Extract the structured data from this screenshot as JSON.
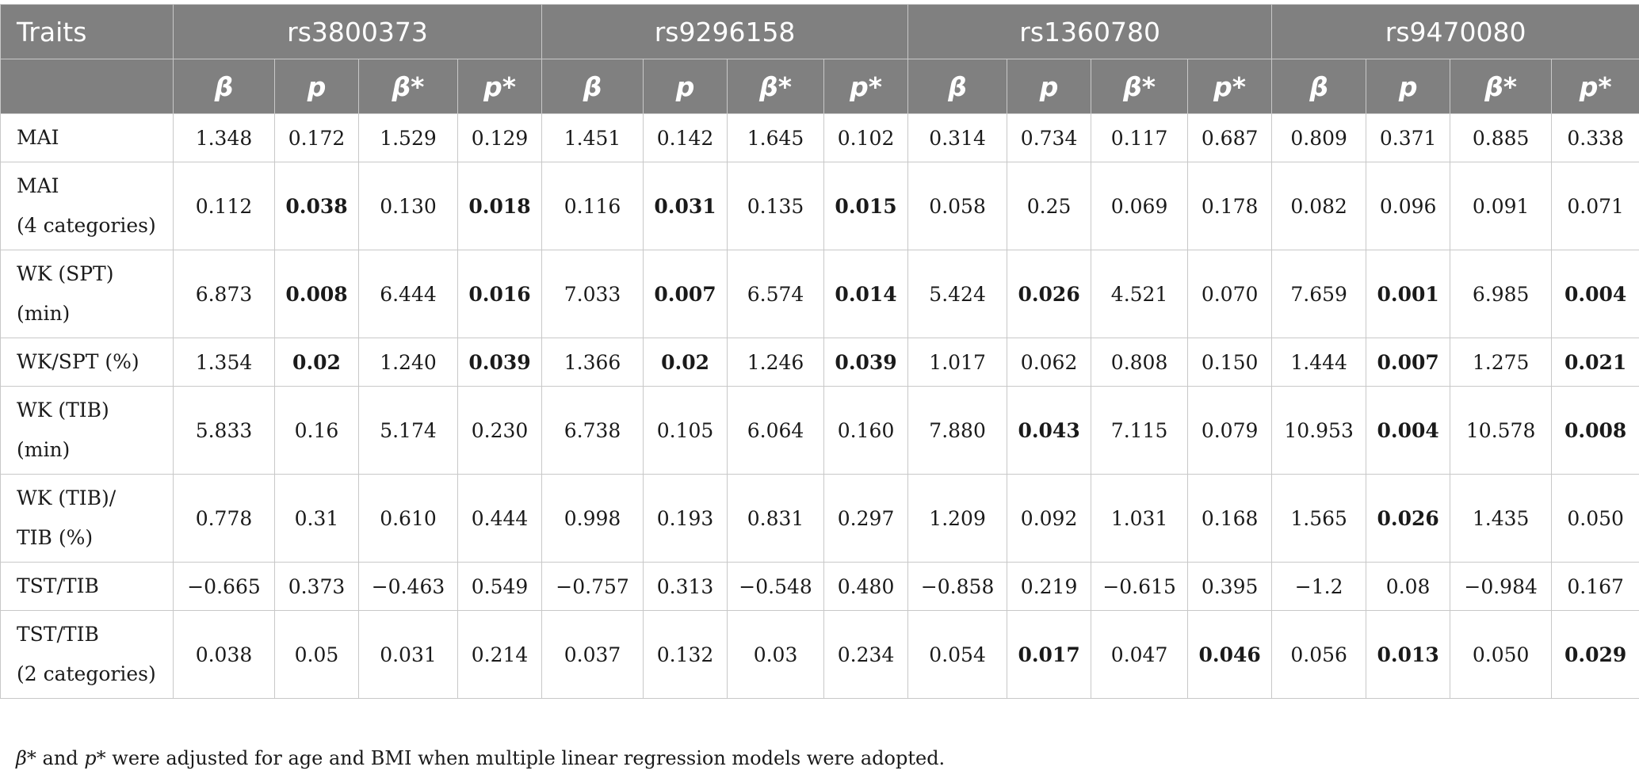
{
  "table": {
    "corner_label": "Traits",
    "snps": [
      "rs3800373",
      "rs9296158",
      "rs1360780",
      "rs9470080"
    ],
    "stat_labels": [
      "β",
      "p",
      "β*",
      "p*"
    ],
    "rows": [
      {
        "trait": [
          "MAI"
        ],
        "values": [
          "1.348",
          "0.172",
          "1.529",
          "0.129",
          "1.451",
          "0.142",
          "1.645",
          "0.102",
          "0.314",
          "0.734",
          "0.117",
          "0.687",
          "0.809",
          "0.371",
          "0.885",
          "0.338"
        ],
        "bold": []
      },
      {
        "trait": [
          "MAI",
          "(4 categories)"
        ],
        "values": [
          "0.112",
          "0.038",
          "0.130",
          "0.018",
          "0.116",
          "0.031",
          "0.135",
          "0.015",
          "0.058",
          "0.25",
          "0.069",
          "0.178",
          "0.082",
          "0.096",
          "0.091",
          "0.071"
        ],
        "bold": [
          1,
          3,
          5,
          7
        ]
      },
      {
        "trait": [
          "WK (SPT)",
          "(min)"
        ],
        "values": [
          "6.873",
          "0.008",
          "6.444",
          "0.016",
          "7.033",
          "0.007",
          "6.574",
          "0.014",
          "5.424",
          "0.026",
          "4.521",
          "0.070",
          "7.659",
          "0.001",
          "6.985",
          "0.004"
        ],
        "bold": [
          1,
          3,
          5,
          7,
          9,
          13,
          15
        ]
      },
      {
        "trait": [
          "WK/SPT (%)"
        ],
        "values": [
          "1.354",
          "0.02",
          "1.240",
          "0.039",
          "1.366",
          "0.02",
          "1.246",
          "0.039",
          "1.017",
          "0.062",
          "0.808",
          "0.150",
          "1.444",
          "0.007",
          "1.275",
          "0.021"
        ],
        "bold": [
          1,
          3,
          5,
          7,
          13,
          15
        ]
      },
      {
        "trait": [
          "WK (TIB)",
          "(min)"
        ],
        "values": [
          "5.833",
          "0.16",
          "5.174",
          "0.230",
          "6.738",
          "0.105",
          "6.064",
          "0.160",
          "7.880",
          "0.043",
          "7.115",
          "0.079",
          "10.953",
          "0.004",
          "10.578",
          "0.008"
        ],
        "bold": [
          9,
          13,
          15
        ]
      },
      {
        "trait": [
          "WK (TIB)/",
          "TIB (%)"
        ],
        "values": [
          "0.778",
          "0.31",
          "0.610",
          "0.444",
          "0.998",
          "0.193",
          "0.831",
          "0.297",
          "1.209",
          "0.092",
          "1.031",
          "0.168",
          "1.565",
          "0.026",
          "1.435",
          "0.050"
        ],
        "bold": [
          13
        ]
      },
      {
        "trait": [
          "TST/TIB"
        ],
        "values": [
          "−0.665",
          "0.373",
          "−0.463",
          "0.549",
          "−0.757",
          "0.313",
          "−0.548",
          "0.480",
          "−0.858",
          "0.219",
          "−0.615",
          "0.395",
          "−1.2",
          "0.08",
          "−0.984",
          "0.167"
        ],
        "bold": []
      },
      {
        "trait": [
          "TST/TIB",
          "(2 categories)"
        ],
        "values": [
          "0.038",
          "0.05",
          "0.031",
          "0.214",
          "0.037",
          "0.132",
          "0.03",
          "0.234",
          "0.054",
          "0.017",
          "0.047",
          "0.046",
          "0.056",
          "0.013",
          "0.050",
          "0.029"
        ],
        "bold": [
          9,
          11,
          13,
          15
        ]
      }
    ]
  },
  "footnote": {
    "beta_sym": "β*",
    "and_text": " and ",
    "p_sym": "p*",
    "rest": " were adjusted for age and BMI when multiple linear regression models were adopted."
  }
}
